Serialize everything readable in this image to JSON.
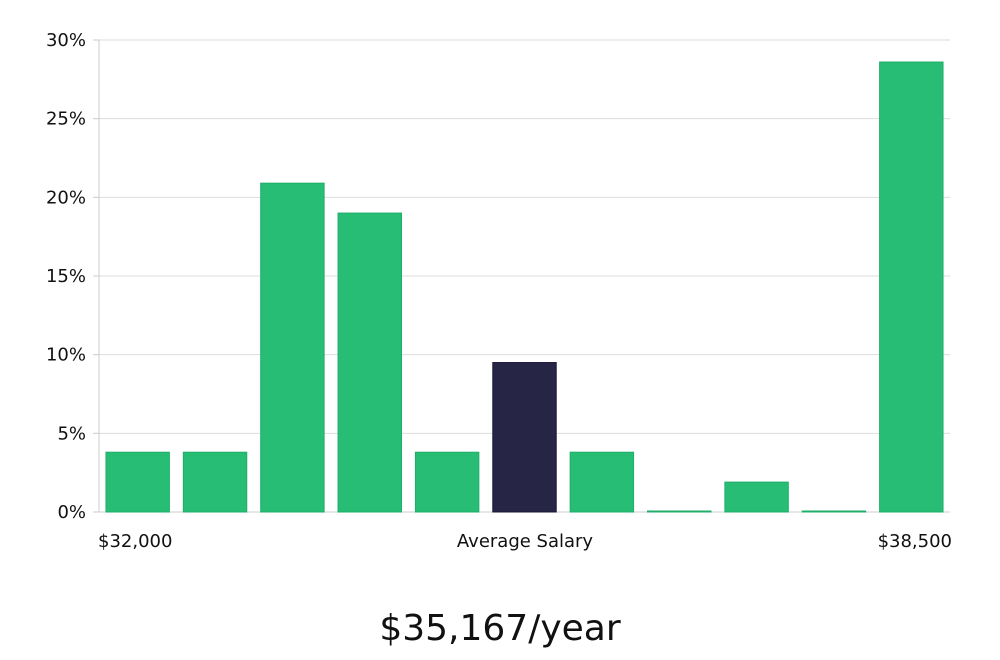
{
  "chart_data": {
    "type": "bar",
    "x_min_label": "$32,000",
    "x_max_label": "$38,500",
    "xlabel": "Average Salary",
    "ylim": [
      0,
      30
    ],
    "yticks": [
      0,
      5,
      10,
      15,
      20,
      25,
      30
    ],
    "ytick_labels": [
      "0%",
      "5%",
      "10%",
      "15%",
      "20%",
      "25%",
      "30%"
    ],
    "values": [
      3.8,
      3.8,
      20.9,
      19.0,
      3.8,
      9.5,
      3.8,
      0,
      1.9,
      0,
      28.6
    ],
    "highlight_index": 5,
    "grid": true,
    "colors": {
      "bar": "#27bd75",
      "bar_border": "#1fae69",
      "highlight": "#272546",
      "grid": "#dddddd",
      "axis": "#cccccc"
    }
  },
  "salary_summary": "$35,167/year"
}
